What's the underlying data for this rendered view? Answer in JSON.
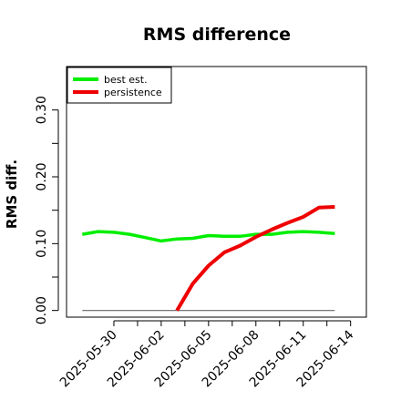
{
  "chart_data": {
    "type": "line",
    "title": "RMS difference",
    "ylabel": "RMS diff.",
    "xlabel": "",
    "x": [
      "2025-05-28",
      "2025-05-29",
      "2025-05-30",
      "2025-05-31",
      "2025-06-01",
      "2025-06-02",
      "2025-06-03",
      "2025-06-04",
      "2025-06-05",
      "2025-06-06",
      "2025-06-07",
      "2025-06-08",
      "2025-06-09",
      "2025-06-10",
      "2025-06-11",
      "2025-06-12",
      "2025-06-13",
      "2025-06-14"
    ],
    "x_ticks": [
      "2025-05-30",
      "2025-06-02",
      "2025-06-05",
      "2025-06-08",
      "2025-06-11",
      "2025-06-14"
    ],
    "y_ticks": [
      "0.00",
      "0.10",
      "0.20",
      "0.30"
    ],
    "ylim": [
      -0.01,
      0.365
    ],
    "xlim": [
      "2025-05-27",
      "2025-06-15"
    ],
    "grid": false,
    "legend_position": "top-left",
    "reference_line": 0,
    "series": [
      {
        "name": "best est.",
        "color": "#00ee00",
        "values": [
          0.114,
          0.118,
          0.117,
          0.114,
          0.109,
          0.104,
          0.107,
          0.108,
          0.112,
          0.111,
          0.111,
          0.114,
          0.114,
          0.117,
          0.118,
          0.117,
          0.115,
          null
        ]
      },
      {
        "name": "persistence",
        "color": "#ee0000",
        "values": [
          null,
          null,
          null,
          null,
          null,
          null,
          0.0,
          0.04,
          0.067,
          0.087,
          0.097,
          0.11,
          0.121,
          0.131,
          0.14,
          0.154,
          0.155,
          null
        ]
      }
    ],
    "reference_color": "#666666"
  }
}
